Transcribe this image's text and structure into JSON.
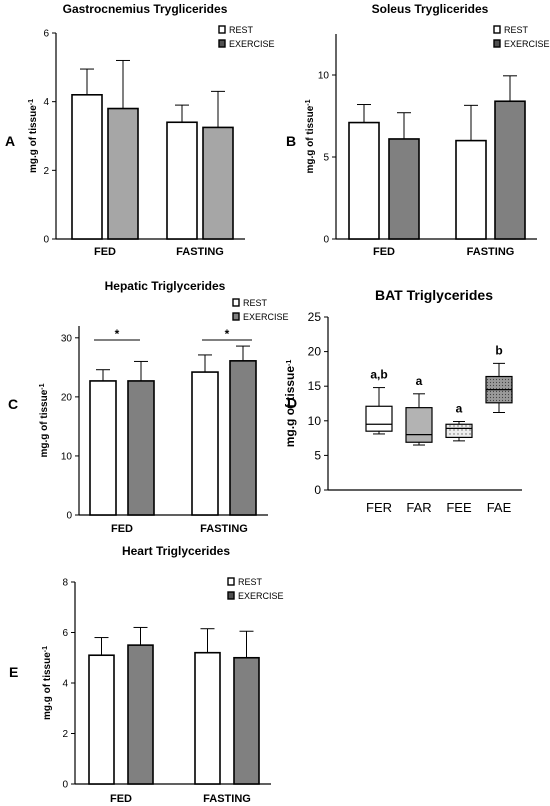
{
  "chart_data": [
    {
      "panel": "A",
      "type": "bar",
      "title": "Gastrocnemius Tryglicerides",
      "ylabel": "mg.g of tissue-1",
      "categories": [
        "FED",
        "FASTING"
      ],
      "ylim": [
        0,
        6
      ],
      "yticks": [
        0,
        2,
        4,
        6
      ],
      "legend_position": "top-right",
      "series": [
        {
          "name": "REST",
          "color": "#ffffff",
          "values": [
            4.2,
            3.4
          ],
          "errors": [
            0.75,
            0.5
          ]
        },
        {
          "name": "EXERCISE",
          "color": "#a6a6a6",
          "values": [
            3.8,
            3.25
          ],
          "errors": [
            1.4,
            1.05
          ]
        }
      ]
    },
    {
      "panel": "B",
      "type": "bar",
      "title": "Soleus Tryglicerides",
      "ylabel": "mg.g of tissue-1",
      "categories": [
        "FED",
        "FASTING"
      ],
      "ylim": [
        0,
        12.5
      ],
      "yticks": [
        0,
        5,
        10
      ],
      "legend_position": "top-right",
      "series": [
        {
          "name": "REST",
          "color": "#ffffff",
          "values": [
            7.1,
            6.0
          ],
          "errors": [
            1.1,
            2.15
          ]
        },
        {
          "name": "EXERCISE",
          "color": "#808080",
          "values": [
            6.1,
            8.4
          ],
          "errors": [
            1.6,
            1.55
          ]
        }
      ]
    },
    {
      "panel": "C",
      "type": "bar",
      "title": "Hepatic Triglycerides",
      "ylabel": "mg.g of tissue-1",
      "categories": [
        "FED",
        "FASTING"
      ],
      "ylim": [
        0,
        32
      ],
      "yticks": [
        0,
        10,
        20,
        30
      ],
      "legend_position": "top-right",
      "annotations": [
        "*",
        "*"
      ],
      "series": [
        {
          "name": "REST",
          "color": "#ffffff",
          "values": [
            22.7,
            24.2
          ],
          "errors": [
            1.9,
            2.9
          ]
        },
        {
          "name": "EXERCISE",
          "color": "#808080",
          "values": [
            22.7,
            26.1
          ],
          "errors": [
            3.3,
            2.5
          ]
        }
      ]
    },
    {
      "panel": "D",
      "type": "box",
      "title": "BAT Triglycerides",
      "ylabel": "mg.g of tissue-1",
      "categories": [
        "FER",
        "FAR",
        "FEE",
        "FAE"
      ],
      "ylim": [
        0,
        25
      ],
      "yticks": [
        0,
        5,
        10,
        15,
        20,
        25
      ],
      "letters": [
        "a,b",
        "a",
        "a",
        "b"
      ],
      "boxes": [
        {
          "min": 8.1,
          "q1": 8.5,
          "median": 9.5,
          "q3": 12.1,
          "max": 14.8,
          "fill": "#ffffff"
        },
        {
          "min": 6.5,
          "q1": 6.9,
          "median": 8.0,
          "q3": 11.9,
          "max": 13.9,
          "fill": "#b3b3b3"
        },
        {
          "min": 7.1,
          "q1": 7.6,
          "median": 8.9,
          "q3": 9.5,
          "max": 9.9,
          "fill": "#e6e6e6"
        },
        {
          "min": 11.2,
          "q1": 12.6,
          "median": 14.5,
          "q3": 16.4,
          "max": 18.3,
          "fill": "#999999"
        }
      ]
    },
    {
      "panel": "E",
      "type": "bar",
      "title": "Heart Triglycerides",
      "ylabel": "mg.g of tissue-1",
      "categories": [
        "FED",
        "FASTING"
      ],
      "ylim": [
        0,
        8
      ],
      "yticks": [
        0,
        2,
        4,
        6,
        8
      ],
      "legend_position": "top-right",
      "series": [
        {
          "name": "REST",
          "color": "#ffffff",
          "values": [
            5.1,
            5.2
          ],
          "errors": [
            0.7,
            0.95
          ]
        },
        {
          "name": "EXERCISE",
          "color": "#808080",
          "values": [
            5.5,
            5.0
          ],
          "errors": [
            0.7,
            1.05
          ]
        }
      ]
    }
  ]
}
